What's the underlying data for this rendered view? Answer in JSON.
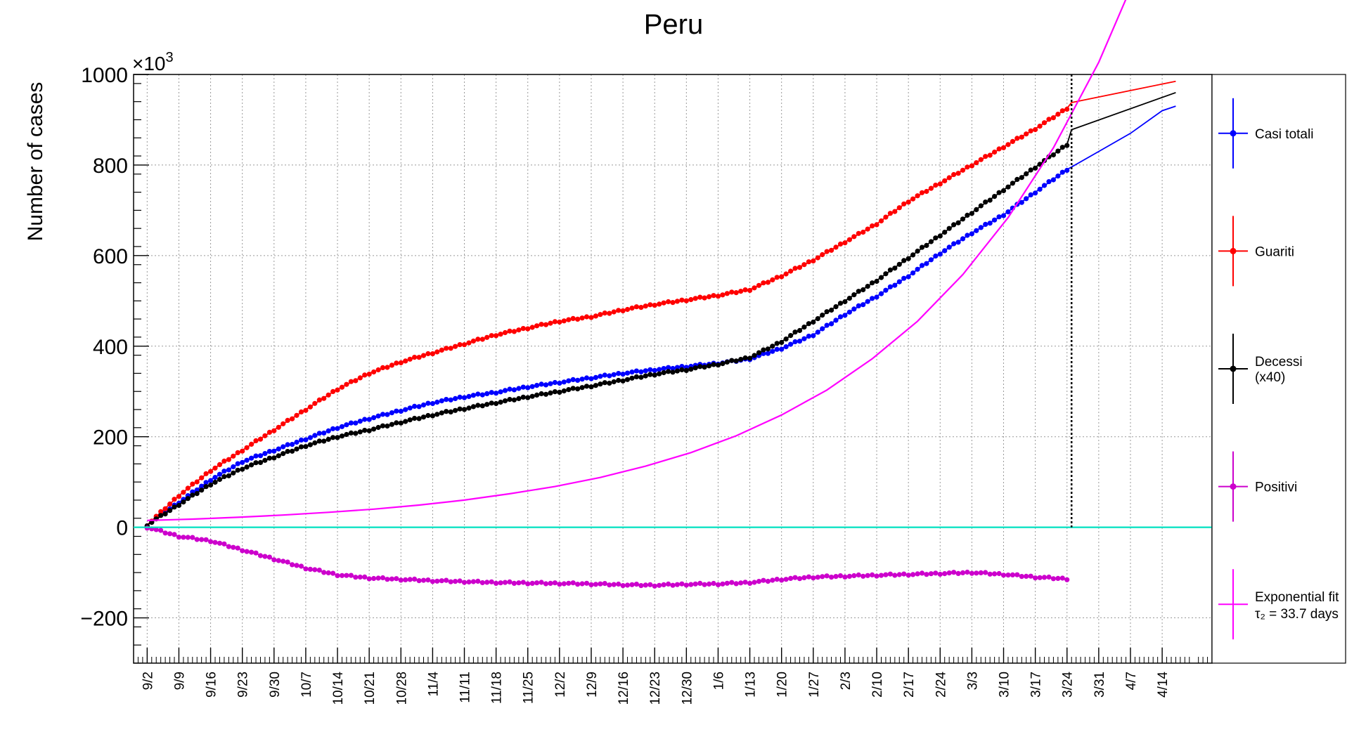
{
  "chart_data": {
    "type": "line",
    "title": "Peru",
    "xlabel": "",
    "ylabel": "Number of cases",
    "y_multiplier_label": "×10^3",
    "ylim": [
      -300,
      1000
    ],
    "y_ticks": [
      -200,
      0,
      200,
      400,
      600,
      800,
      1000
    ],
    "y_tick_labels": [
      "−200",
      "0",
      "200",
      "400",
      "600",
      "800",
      "1000"
    ],
    "x_tick_labels": [
      "9/2",
      "9/9",
      "9/16",
      "9/23",
      "9/30",
      "10/7",
      "10/14",
      "10/21",
      "10/28",
      "11/4",
      "11/11",
      "11/18",
      "11/25",
      "12/2",
      "12/9",
      "12/16",
      "12/23",
      "12/30",
      "1/6",
      "1/13",
      "1/20",
      "1/27",
      "2/3",
      "2/10",
      "2/17",
      "2/24",
      "3/3",
      "3/10",
      "3/17",
      "3/24",
      "3/31",
      "4/7",
      "4/14"
    ],
    "xlim_days": [
      -3,
      235
    ],
    "vertical_marker_day": 204,
    "grid": true,
    "legend_position": "right",
    "series": [
      {
        "name": "Casi totali",
        "color": "#0000ff",
        "style": "markers",
        "x_days": [
          0,
          7,
          14,
          21,
          28,
          35,
          42,
          49,
          56,
          63,
          70,
          77,
          84,
          91,
          98,
          105,
          112,
          119,
          126,
          133,
          140,
          147,
          154,
          161,
          168,
          175,
          182,
          189,
          196,
          203,
          210,
          217,
          224,
          227
        ],
        "values": [
          5,
          55,
          105,
          145,
          170,
          195,
          220,
          240,
          258,
          275,
          288,
          298,
          310,
          320,
          330,
          340,
          348,
          355,
          362,
          372,
          395,
          425,
          470,
          510,
          555,
          605,
          650,
          690,
          740,
          790,
          830,
          870,
          920,
          930
        ]
      },
      {
        "name": "Guariti",
        "color": "#ff0000",
        "style": "markers",
        "x_days": [
          0,
          7,
          14,
          21,
          28,
          35,
          42,
          49,
          56,
          63,
          70,
          77,
          84,
          91,
          98,
          105,
          112,
          119,
          126,
          133,
          140,
          147,
          154,
          161,
          168,
          175,
          182,
          189,
          196,
          203,
          204,
          227
        ],
        "values": [
          5,
          70,
          125,
          170,
          215,
          260,
          305,
          340,
          365,
          385,
          405,
          425,
          440,
          455,
          465,
          480,
          492,
          502,
          512,
          525,
          555,
          590,
          630,
          670,
          720,
          760,
          800,
          840,
          880,
          925,
          938,
          985
        ]
      },
      {
        "name": "Decessi (x40)",
        "color": "#000000",
        "style": "markers",
        "x_days": [
          0,
          7,
          14,
          21,
          28,
          35,
          42,
          49,
          56,
          63,
          70,
          77,
          84,
          91,
          98,
          105,
          112,
          119,
          126,
          133,
          140,
          147,
          154,
          161,
          168,
          175,
          182,
          189,
          196,
          203,
          204,
          227
        ],
        "values": [
          5,
          50,
          95,
          130,
          155,
          180,
          200,
          215,
          232,
          248,
          262,
          275,
          288,
          300,
          312,
          325,
          338,
          348,
          360,
          375,
          410,
          455,
          500,
          545,
          595,
          645,
          695,
          745,
          795,
          845,
          878,
          960
        ]
      },
      {
        "name": "Positivi",
        "color": "#cc00cc",
        "style": "markers",
        "x_days": [
          0,
          7,
          14,
          21,
          28,
          35,
          42,
          49,
          56,
          63,
          70,
          77,
          84,
          91,
          98,
          105,
          112,
          119,
          126,
          133,
          140,
          147,
          154,
          161,
          168,
          175,
          182,
          189,
          196,
          203
        ],
        "values": [
          0,
          -20,
          -30,
          -50,
          -70,
          -90,
          -105,
          -112,
          -115,
          -118,
          -120,
          -122,
          -123,
          -124,
          -125,
          -127,
          -128,
          -126,
          -125,
          -122,
          -115,
          -110,
          -108,
          -106,
          -104,
          -102,
          -100,
          -104,
          -110,
          -114
        ]
      },
      {
        "name": "Exponential fit",
        "legend_subtitle": "τ₂ = 33.7 days",
        "color": "#ff00ff",
        "style": "line",
        "x_days": [
          0,
          10,
          20,
          30,
          40,
          50,
          60,
          70,
          80,
          90,
          100,
          110,
          120,
          130,
          140,
          150,
          160,
          170,
          180,
          190,
          200,
          210,
          220
        ],
        "values": [
          15,
          18,
          22,
          27,
          33,
          40,
          49,
          60,
          74,
          90,
          110,
          135,
          165,
          202,
          248,
          303,
          372,
          455,
          558,
          684,
          838,
          1027,
          1259
        ]
      },
      {
        "name": "",
        "color": "#00e0c0",
        "style": "line",
        "x_days": [
          -3,
          235
        ],
        "values": [
          0,
          0
        ]
      }
    ]
  }
}
